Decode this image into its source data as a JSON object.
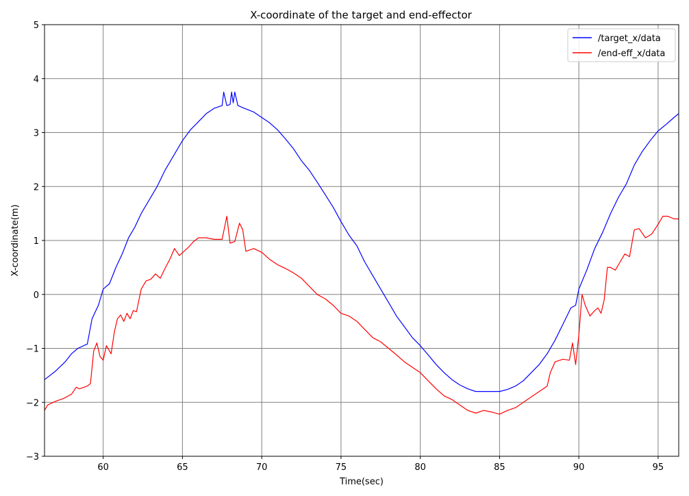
{
  "chart_data": {
    "type": "line",
    "title": "X-coordinate of the target and end-effector",
    "xlabel": "Time(sec)",
    "ylabel": "X-coordinate(m)",
    "xlim": [
      56.3,
      96.3
    ],
    "ylim": [
      -3,
      5
    ],
    "xticks": [
      60,
      65,
      70,
      75,
      80,
      85,
      90,
      95
    ],
    "yticks": [
      -3,
      -2,
      -1,
      0,
      1,
      2,
      3,
      4,
      5
    ],
    "xtick_labels": [
      "60",
      "65",
      "70",
      "75",
      "80",
      "85",
      "90",
      "95"
    ],
    "ytick_labels": [
      "−3",
      "−2",
      "−1",
      "0",
      "1",
      "2",
      "3",
      "4",
      "5"
    ],
    "grid": true,
    "legend_position": "top-right",
    "series": [
      {
        "name": "/target_x/data",
        "color": "#0000ff",
        "x": [
          56.3,
          57.0,
          57.6,
          58.0,
          58.4,
          59.0,
          59.3,
          59.7,
          60.0,
          60.4,
          60.8,
          61.2,
          61.6,
          62.0,
          62.4,
          62.9,
          63.4,
          63.9,
          64.4,
          65.0,
          65.5,
          66.0,
          66.5,
          67.0,
          67.5,
          67.6,
          67.8,
          68.0,
          68.1,
          68.2,
          68.3,
          68.5,
          68.9,
          69.5,
          70.0,
          70.5,
          71.0,
          71.5,
          72.0,
          72.5,
          73.0,
          73.5,
          74.0,
          74.5,
          75.0,
          75.5,
          76.0,
          76.5,
          77.0,
          77.5,
          78.0,
          78.5,
          79.0,
          79.5,
          80.0,
          80.5,
          81.0,
          81.5,
          82.0,
          82.5,
          83.0,
          83.5,
          84.0,
          84.5,
          85.0,
          85.5,
          86.0,
          86.5,
          87.0,
          87.5,
          88.0,
          88.5,
          89.0,
          89.5,
          89.8,
          90.0,
          90.5,
          91.0,
          91.5,
          92.0,
          92.5,
          93.0,
          93.5,
          94.0,
          94.5,
          95.0,
          95.5,
          96.0,
          96.3
        ],
        "y": [
          -1.58,
          -1.42,
          -1.25,
          -1.1,
          -1.0,
          -0.92,
          -0.45,
          -0.2,
          0.1,
          0.2,
          0.5,
          0.75,
          1.05,
          1.25,
          1.5,
          1.75,
          2.0,
          2.3,
          2.55,
          2.85,
          3.05,
          3.2,
          3.35,
          3.45,
          3.5,
          3.75,
          3.5,
          3.52,
          3.75,
          3.55,
          3.75,
          3.5,
          3.45,
          3.38,
          3.28,
          3.18,
          3.05,
          2.88,
          2.7,
          2.48,
          2.3,
          2.08,
          1.85,
          1.62,
          1.35,
          1.1,
          0.9,
          0.6,
          0.35,
          0.1,
          -0.15,
          -0.4,
          -0.6,
          -0.8,
          -0.95,
          -1.12,
          -1.3,
          -1.45,
          -1.58,
          -1.68,
          -1.75,
          -1.8,
          -1.8,
          -1.8,
          -1.8,
          -1.76,
          -1.7,
          -1.6,
          -1.45,
          -1.3,
          -1.1,
          -0.85,
          -0.55,
          -0.25,
          -0.2,
          0.1,
          0.45,
          0.85,
          1.15,
          1.5,
          1.8,
          2.05,
          2.4,
          2.65,
          2.85,
          3.03,
          3.15,
          3.28,
          3.35
        ]
      },
      {
        "name": "/end-eff_x/data",
        "color": "#ff0000",
        "x": [
          56.3,
          56.5,
          57.0,
          57.5,
          58.0,
          58.3,
          58.5,
          59.0,
          59.2,
          59.4,
          59.6,
          59.8,
          60.0,
          60.2,
          60.5,
          60.7,
          60.9,
          61.1,
          61.3,
          61.5,
          61.7,
          61.9,
          62.1,
          62.4,
          62.7,
          63.0,
          63.3,
          63.6,
          63.9,
          64.2,
          64.5,
          64.8,
          65.1,
          65.4,
          65.7,
          66.0,
          66.5,
          67.0,
          67.5,
          67.8,
          68.0,
          68.3,
          68.6,
          68.8,
          69.0,
          69.5,
          70.0,
          70.5,
          71.0,
          71.5,
          72.0,
          72.5,
          73.0,
          73.5,
          74.0,
          74.5,
          75.0,
          75.5,
          76.0,
          76.5,
          77.0,
          77.5,
          78.0,
          78.5,
          79.0,
          79.5,
          80.0,
          80.5,
          81.0,
          81.5,
          82.0,
          82.5,
          83.0,
          83.5,
          84.0,
          84.5,
          85.0,
          85.5,
          86.0,
          86.5,
          87.0,
          87.5,
          88.0,
          88.2,
          88.5,
          89.0,
          89.4,
          89.6,
          89.8,
          90.0,
          90.2,
          90.4,
          90.7,
          91.0,
          91.2,
          91.4,
          91.6,
          91.8,
          92.0,
          92.3,
          92.6,
          92.9,
          93.2,
          93.5,
          93.8,
          94.2,
          94.6,
          95.0,
          95.3,
          95.6,
          96.0,
          96.3
        ],
        "y": [
          -2.15,
          -2.05,
          -1.98,
          -1.93,
          -1.85,
          -1.72,
          -1.75,
          -1.7,
          -1.65,
          -1.05,
          -0.9,
          -1.15,
          -1.22,
          -0.95,
          -1.1,
          -0.7,
          -0.45,
          -0.38,
          -0.5,
          -0.35,
          -0.45,
          -0.3,
          -0.32,
          0.1,
          0.25,
          0.28,
          0.38,
          0.3,
          0.48,
          0.65,
          0.85,
          0.72,
          0.8,
          0.88,
          0.98,
          1.05,
          1.05,
          1.02,
          1.02,
          1.45,
          0.95,
          0.98,
          1.32,
          1.2,
          0.8,
          0.85,
          0.78,
          0.65,
          0.55,
          0.48,
          0.4,
          0.3,
          0.15,
          0.0,
          -0.08,
          -0.2,
          -0.35,
          -0.4,
          -0.5,
          -0.65,
          -0.8,
          -0.88,
          -1.0,
          -1.12,
          -1.25,
          -1.35,
          -1.45,
          -1.6,
          -1.75,
          -1.88,
          -1.95,
          -2.05,
          -2.15,
          -2.2,
          -2.15,
          -2.18,
          -2.22,
          -2.15,
          -2.1,
          -2.0,
          -1.9,
          -1.8,
          -1.7,
          -1.45,
          -1.25,
          -1.2,
          -1.22,
          -0.9,
          -1.3,
          -0.75,
          0.0,
          -0.2,
          -0.4,
          -0.3,
          -0.25,
          -0.35,
          -0.1,
          0.5,
          0.5,
          0.45,
          0.6,
          0.75,
          0.7,
          1.2,
          1.22,
          1.05,
          1.12,
          1.3,
          1.45,
          1.45,
          1.4,
          1.4
        ]
      }
    ]
  }
}
